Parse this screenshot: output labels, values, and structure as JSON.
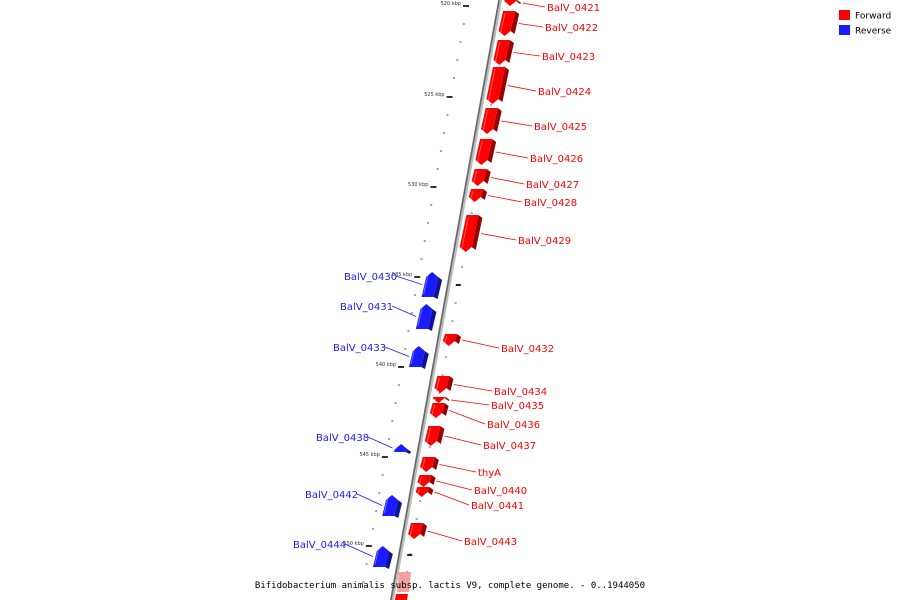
{
  "legend": [
    {
      "label": "Forward",
      "color": "#ff0000"
    },
    {
      "label": "Reverse",
      "color": "#1a1aff"
    }
  ],
  "caption": "Bifidobacterium animalis subsp. lactis V9, complete genome. - 0..1944050",
  "colors": {
    "forward": "#ff0000",
    "reverse": "#1a1aff",
    "backbone": "#888888",
    "tick": "#333333"
  },
  "axis": {
    "unit": "kbp",
    "major_ticks": [
      "520 kbp",
      "525 kbp",
      "530 kbp",
      "535 kbp",
      "540 kbp",
      "545 kbp",
      "550 kbp"
    ]
  },
  "genes": [
    {
      "name": "BalV_0421",
      "strand": "forward"
    },
    {
      "name": "BalV_0422",
      "strand": "forward"
    },
    {
      "name": "BalV_0423",
      "strand": "forward"
    },
    {
      "name": "BalV_0424",
      "strand": "forward"
    },
    {
      "name": "BalV_0425",
      "strand": "forward"
    },
    {
      "name": "BalV_0426",
      "strand": "forward"
    },
    {
      "name": "BalV_0427",
      "strand": "forward"
    },
    {
      "name": "BalV_0428",
      "strand": "forward"
    },
    {
      "name": "BalV_0429",
      "strand": "forward"
    },
    {
      "name": "BalV_0430",
      "strand": "reverse"
    },
    {
      "name": "BalV_0431",
      "strand": "reverse"
    },
    {
      "name": "BalV_0432",
      "strand": "forward"
    },
    {
      "name": "BalV_0433",
      "strand": "reverse"
    },
    {
      "name": "BalV_0434",
      "strand": "forward"
    },
    {
      "name": "BalV_0435",
      "strand": "forward"
    },
    {
      "name": "BalV_0436",
      "strand": "forward"
    },
    {
      "name": "BalV_0437",
      "strand": "forward"
    },
    {
      "name": "BalV_0438",
      "strand": "reverse"
    },
    {
      "name": "thyA",
      "strand": "forward"
    },
    {
      "name": "BalV_0440",
      "strand": "forward"
    },
    {
      "name": "BalV_0441",
      "strand": "forward"
    },
    {
      "name": "BalV_0442",
      "strand": "reverse"
    },
    {
      "name": "BalV_0443",
      "strand": "forward"
    },
    {
      "name": "BalV_0444",
      "strand": "reverse"
    }
  ]
}
